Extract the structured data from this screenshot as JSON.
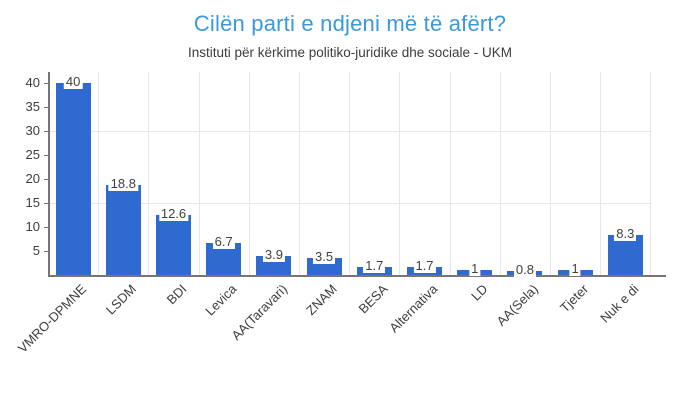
{
  "chart_data": {
    "type": "bar",
    "title": "Cilën parti e ndjeni më të afërt?",
    "subtitle": "Instituti për kërkime politiko-juridike dhe sociale - UKM",
    "categories": [
      "VMRO-DPMNE",
      "LSDM",
      "BDI",
      "Levica",
      "AA(Taravari)",
      "ZNAM",
      "BESA",
      "Alternativa",
      "LD",
      "AA(Sela)",
      "Tjeter",
      "Nuk e di"
    ],
    "values": [
      40,
      18.8,
      12.6,
      6.7,
      3.9,
      3.5,
      1.7,
      1.7,
      1,
      0.8,
      1,
      8.3
    ],
    "value_labels": [
      "40",
      "18.8",
      "12.6",
      "6.7",
      "3.9",
      "3.5",
      "1.7",
      "1.7",
      "1",
      "0.8",
      "1",
      "8.3"
    ],
    "xlabel": "",
    "ylabel": "",
    "ylim": [
      0,
      42
    ],
    "yticks": [
      5,
      10,
      15,
      20,
      25,
      30,
      35,
      40
    ],
    "gridlines_y": [
      15,
      30
    ],
    "grid": "on",
    "legend": "none",
    "label_rotation_deg": -45,
    "colors": {
      "bar": "#2f6ad1",
      "title": "#3a99d8",
      "subtitle": "#3c3c3c",
      "axis_text": "#3d3d3d",
      "value_label": "#404040",
      "gridline": "#e7e7e7",
      "axis_line": "#767676"
    }
  }
}
